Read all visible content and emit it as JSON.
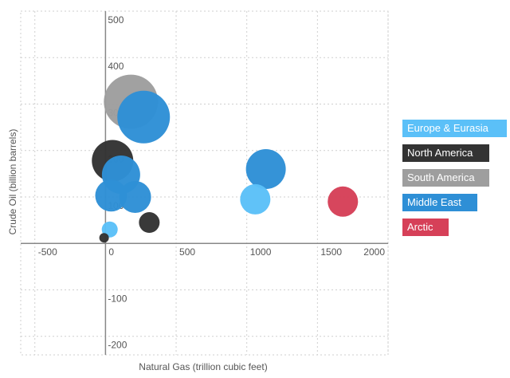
{
  "chart_data": {
    "type": "scatter",
    "subtype": "bubble",
    "title": "",
    "xlabel": "Natural Gas (trillion cubic feet)",
    "ylabel": "Crude Oil (billion barrels)",
    "xlim": [
      -600,
      2000
    ],
    "ylim": [
      -240,
      500
    ],
    "xticks": [
      "-500",
      "0",
      "500",
      "1000",
      "1500",
      "2000"
    ],
    "yticks": [
      "-200",
      "-100",
      "100",
      "200",
      "300",
      "400",
      "500"
    ],
    "grid": true,
    "legend_position": "right",
    "series": [
      {
        "name": "Europe & Eurasia",
        "color": "#5bc0f8",
        "points": [
          {
            "x": 30,
            "y": 30,
            "r": 10
          },
          {
            "x": 1060,
            "y": 95,
            "r": 19
          }
        ]
      },
      {
        "name": "North America",
        "color": "#333333",
        "points": [
          {
            "x": -10,
            "y": 12,
            "r": 6
          },
          {
            "x": 50,
            "y": 178,
            "r": 26
          },
          {
            "x": 310,
            "y": 45,
            "r": 13
          }
        ]
      },
      {
        "name": "South America",
        "color": "#9e9e9e",
        "points": [
          {
            "x": 180,
            "y": 305,
            "r": 34
          }
        ]
      },
      {
        "name": "Middle East",
        "color": "#2e8fd6",
        "points": [
          {
            "x": 110,
            "y": 148,
            "r": 24
          },
          {
            "x": 40,
            "y": 103,
            "r": 20
          },
          {
            "x": 210,
            "y": 100,
            "r": 20
          },
          {
            "x": 270,
            "y": 272,
            "r": 33
          },
          {
            "x": 1135,
            "y": 160,
            "r": 25
          }
        ]
      },
      {
        "name": "Arctic",
        "color": "#d64058",
        "points": [
          {
            "x": 1680,
            "y": 90,
            "r": 19
          }
        ]
      }
    ]
  }
}
